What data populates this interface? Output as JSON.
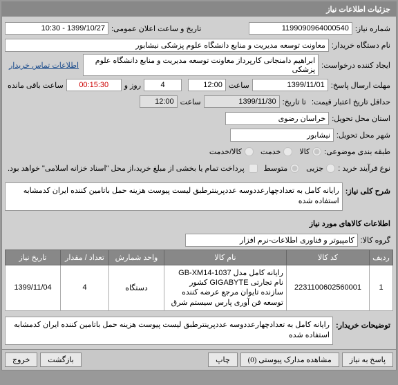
{
  "header": {
    "title": "جزئیات اطلاعات نیاز"
  },
  "fields": {
    "need_no_label": "شماره نیاز:",
    "need_no": "1199090964000540",
    "announce_label": "تاریخ و ساعت اعلان عمومی:",
    "announce": "1399/10/27 - 10:30",
    "buyer_label": "نام دستگاه خریدار:",
    "buyer": "معاونت توسعه مدیریت و منابع دانشگاه علوم پزشکی نیشابور",
    "creator_label": "ایجاد کننده درخواست:",
    "creator": "ابراهیم دامنجانی   کارپرداز معاونت توسعه مدیریت و منابع دانشگاه علوم پزشکی",
    "contact_link": "اطلاعات تماس خریدار",
    "reply_deadline_label": "مهلت ارسال پاسخ:",
    "reply_date": "1399/11/01",
    "time_word": "ساعت",
    "reply_time": "12:00",
    "day_word": "روز و",
    "days_left": "4",
    "remain_time": "00:15:30",
    "remain_label": "ساعت باقی مانده",
    "to_date_label": "تا تاریخ:",
    "price_valid_label": "حداقل تاریخ اعتبار قیمت:",
    "price_valid_to_label": "تا تاریخ:",
    "price_valid_date": "1399/11/30",
    "price_valid_time": "12:00",
    "delivery_province_label": "استان محل تحویل:",
    "delivery_province": "خراسان رضوی",
    "delivery_city_label": "شهر محل تحویل:",
    "delivery_city": "نیشابور",
    "budget_label": "طبقه بندی موضوعی:",
    "budget_goods": "کالا",
    "budget_service": "خدمت",
    "budget_goods_service": "کالا/خدمت",
    "purchase_type_label": "نوع فرآیند خرید :",
    "pt_small": "جزیی",
    "pt_medium": "متوسط",
    "pt_note": "پرداخت تمام یا بخشی از مبلغ خرید،از محل \"اسناد خزانه اسلامی\" خواهد بود.",
    "need_title_label": "شرح کلی نیاز:",
    "need_title": "رایانه کامل به تعدادچهارعددوسه عددپرینترطبق لیست پیوست هزینه حمل باتامین کننده ایران کدمشابه استفاده شده",
    "goods_header": "اطلاعات کالاهای مورد نیاز",
    "group_label": "گروه کالا:",
    "group": "کامپیوتر و فناوری اطلاعات-نرم افزار",
    "buyer_notes_label": "توضیحات خریدار:",
    "buyer_notes": "رایانه کامل به تعدادچهارعددوسه عددپرینترطبق لیست پیوست هزینه حمل باتامین کننده ایران کدمشابه استفاده شده"
  },
  "table": {
    "cols": [
      "ردیف",
      "کد کالا",
      "نام کالا",
      "واحد شمارش",
      "تعداد / مقدار",
      "تاریخ نیاز"
    ],
    "rows": [
      {
        "idx": "1",
        "code": "2231100602560001",
        "name": "رایانه کامل مدل 1037-GB-XM14 نام تجارتی GIGABYTE کشور سازنده تایوان مرجع عرضه کننده توسعه فن آوری پارس سیستم شرق",
        "unit": "دستگاه",
        "qty": "4",
        "date": "1399/11/04"
      }
    ]
  },
  "bottom": {
    "reply": "پاسخ به نیاز",
    "attachments": "مشاهده مدارک پیوستی (0)",
    "print": "چاپ",
    "back": "بازگشت",
    "exit": "خروج"
  }
}
